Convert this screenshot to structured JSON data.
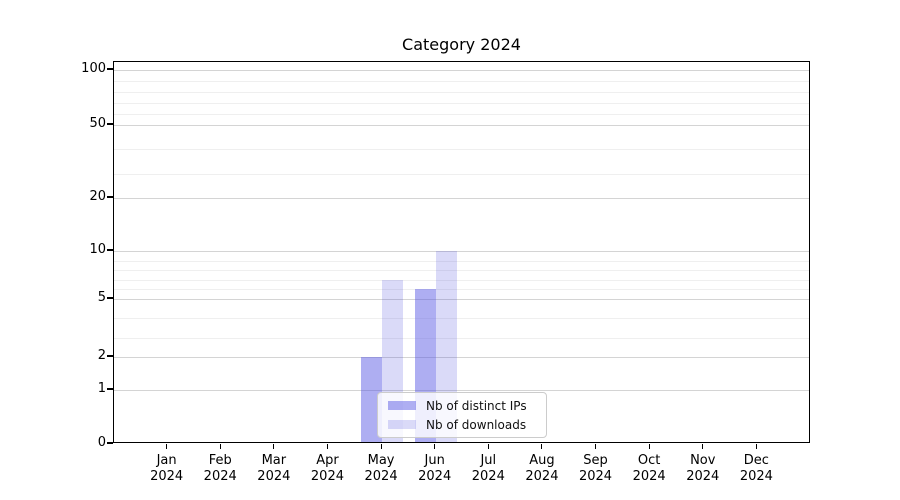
{
  "figure": {
    "title": "Category 2024"
  },
  "chart_data": {
    "type": "bar",
    "title": "Category 2024",
    "xlabel": "",
    "ylabel": "",
    "categories": [
      "Jan",
      "Feb",
      "Mar",
      "Apr",
      "May",
      "Jun",
      "Jul",
      "Aug",
      "Sep",
      "Oct",
      "Nov",
      "Dec"
    ],
    "category_year": "2024",
    "series": [
      {
        "name": "Nb of distinct IPs",
        "color": "#5656e4",
        "fill_opacity": 0.48,
        "rendered_color": "#a9a9f1",
        "values": [
          0,
          0,
          0,
          0,
          2,
          6,
          0,
          0,
          0,
          0,
          0,
          0
        ]
      },
      {
        "name": "Nb of downloads",
        "color": "#4646dc",
        "fill_opacity": 0.2,
        "rendered_color": "#dadaf8",
        "values": [
          0,
          0,
          0,
          0,
          7,
          10,
          0,
          0,
          0,
          0,
          0,
          0
        ]
      }
    ],
    "y_ticks": [
      0,
      1,
      2,
      5,
      10,
      20,
      50,
      100
    ],
    "y_minor_gridlines": [
      3,
      4,
      6,
      7,
      8,
      9,
      30,
      40,
      60,
      70,
      80,
      90
    ],
    "scale": "symlog",
    "grid": true,
    "ylim": [
      0,
      115
    ],
    "legend_position": "lower center",
    "axis_color": "#000000",
    "major_grid_color": "#d4d4d4",
    "minor_grid_color": "#efefef"
  }
}
